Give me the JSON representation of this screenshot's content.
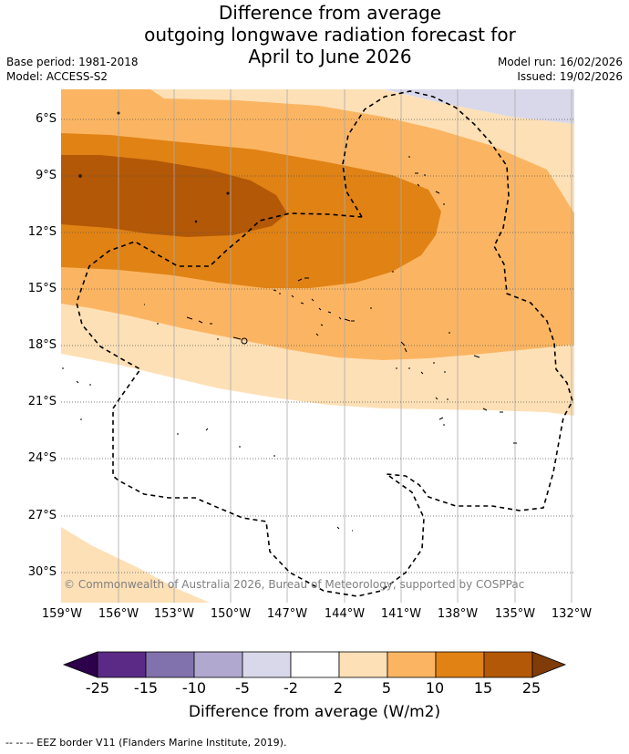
{
  "title": {
    "line1": "Difference from average",
    "line2": "outgoing longwave radiation forecast for",
    "line3": "April to June 2026"
  },
  "meta": {
    "base_period": "Base period: 1981-2018",
    "model": "Model: ACCESS-S2",
    "model_run": "Model run: 16/02/2026",
    "issued": "Issued: 19/02/2026"
  },
  "latitudes": [
    "6°S",
    "9°S",
    "12°S",
    "15°S",
    "18°S",
    "21°S",
    "24°S",
    "27°S",
    "30°S"
  ],
  "longitudes": [
    "159°W",
    "156°W",
    "153°W",
    "150°W",
    "147°W",
    "144°W",
    "141°W",
    "138°W",
    "135°W",
    "132°W"
  ],
  "copyright": "© Commonwealth of Australia 2026, Bureau of Meteorology, supported by COSPPac",
  "colorbar": {
    "title": "Difference from average (W/m2)",
    "ticks": [
      "-25",
      "-15",
      "-10",
      "-5",
      "-2",
      "2",
      "5",
      "10",
      "15",
      "25"
    ],
    "colors": [
      "#5b2a86",
      "#8172ad",
      "#b1a8cf",
      "#d9d8ea",
      "#ffffff",
      "#fee0b6",
      "#fbb562",
      "#e08214",
      "#b35806"
    ],
    "under_color": "#2d004b",
    "over_color": "#7f3b08"
  },
  "footnote": "-- -- -- EEZ border V11 (Flanders Marine Institute, 2019)."
}
